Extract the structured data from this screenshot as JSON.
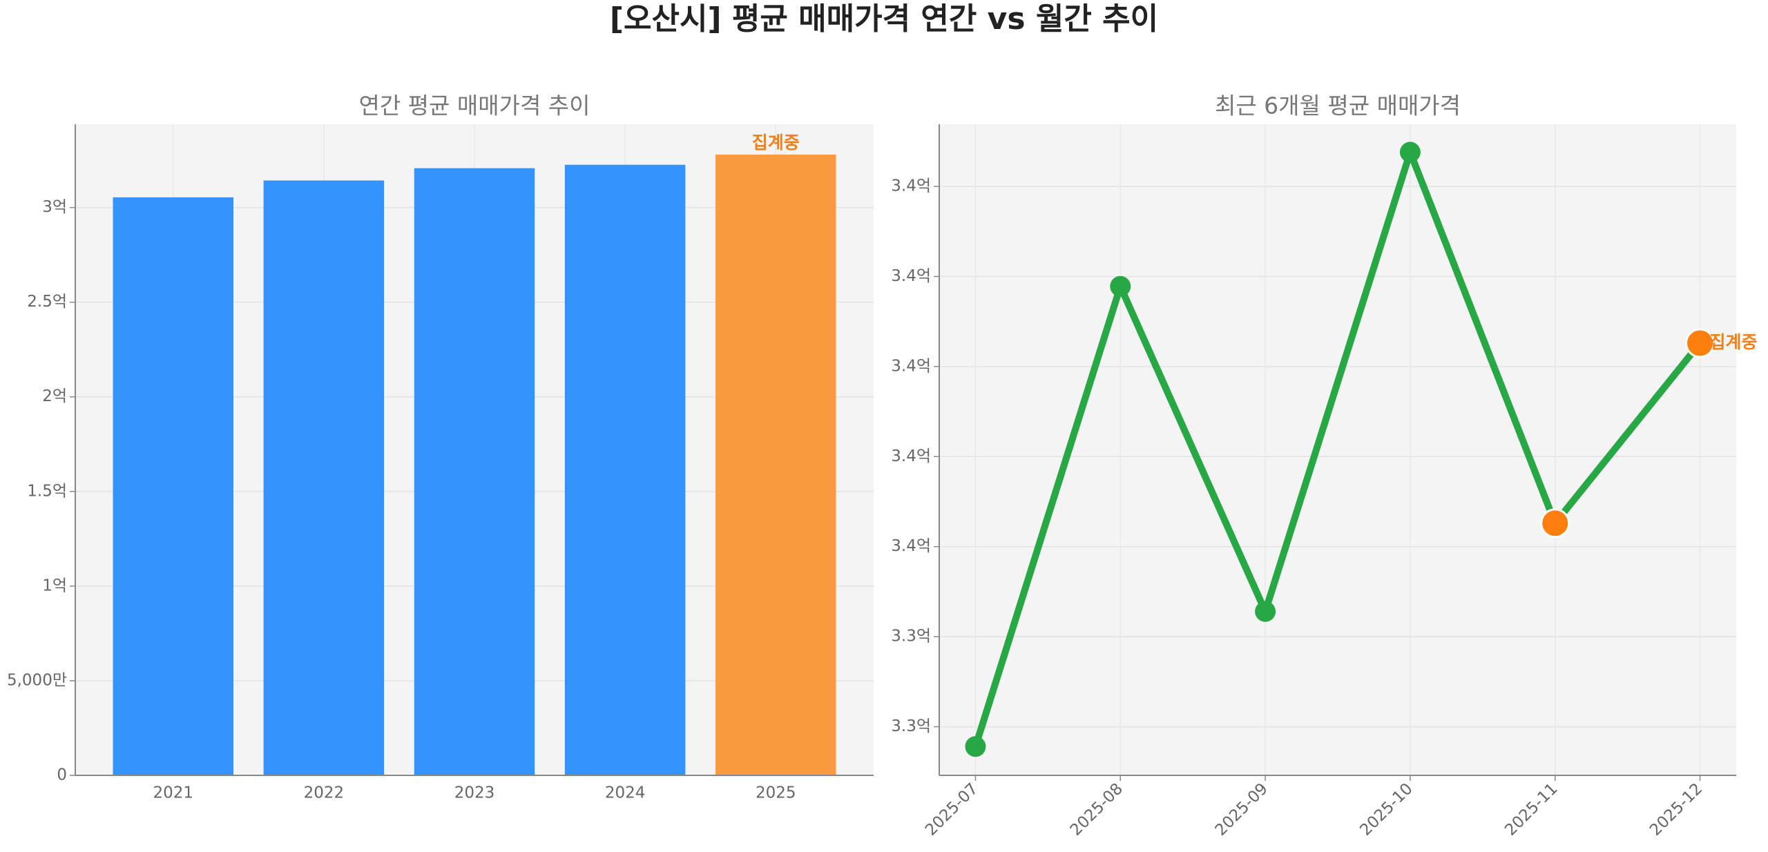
{
  "title": "[오산시] 평균 매매가격 연간 vs 월간 추이",
  "chart_data": [
    {
      "type": "bar",
      "title": "연간 평균 매매가격 추이",
      "categories": [
        "2021",
        "2022",
        "2023",
        "2024",
        "2025"
      ],
      "values": [
        3.054,
        3.143,
        3.208,
        3.226,
        3.28
      ],
      "colors": [
        "#3392fb",
        "#3392fb",
        "#3392fb",
        "#3392fb",
        "#f99a3f"
      ],
      "annotation": "집계중",
      "annotation_color": "#f57f17",
      "ylim": [
        0,
        3.44
      ],
      "yticks": [
        0,
        {
          "value": 0.5,
          "label": "5,000만"
        },
        {
          "value": 1,
          "label": "1억"
        },
        {
          "value": 1.5,
          "label": "1.5억"
        },
        {
          "value": 2,
          "label": "2억"
        },
        {
          "value": 2.5,
          "label": "2.5억"
        },
        {
          "value": 3,
          "label": "3억"
        }
      ],
      "grid": true
    },
    {
      "type": "line",
      "title": "최근 6개월 평균 매매가격",
      "x": [
        "2025-07",
        "2025-08",
        "2025-09",
        "2025-10",
        "2025-11",
        "2025-12"
      ],
      "values": [
        3.3278,
        3.3789,
        3.3428,
        3.3938,
        3.3526,
        3.3726
      ],
      "color": "#28a745",
      "marker_colors": [
        "#28a745",
        "#28a745",
        "#28a745",
        "#28a745",
        "#ff7f0e",
        "#ff7f0e"
      ],
      "annotation": "집계중",
      "annotation_color": "#f57f17",
      "ylim": [
        3.3246,
        3.3969
      ],
      "yticks": [
        {
          "value": 3.33,
          "label": "3.3억"
        },
        {
          "value": 3.34,
          "label": "3.3억"
        },
        {
          "value": 3.35,
          "label": "3.4억"
        },
        {
          "value": 3.36,
          "label": "3.4억"
        },
        {
          "value": 3.37,
          "label": "3.4억"
        },
        {
          "value": 3.38,
          "label": "3.4억"
        },
        {
          "value": 3.39,
          "label": "3.4억"
        }
      ],
      "grid": true
    }
  ]
}
